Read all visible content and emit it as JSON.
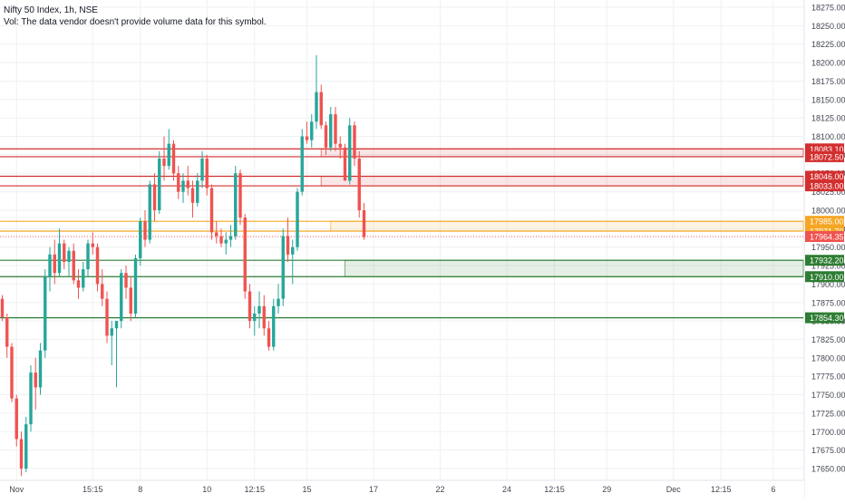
{
  "header": {
    "symbol_line": "Nifty 50 Index, 1h, NSE",
    "volume_note": "Vol: The data vendor doesn't provide volume data for this symbol."
  },
  "colors": {
    "up": "#26a69a",
    "down": "#ef5350",
    "grid": "#eef0f3",
    "axis_text": "#434651",
    "resistance": "#d32f2f",
    "pivot": "#f5a623",
    "support": "#2e7d32",
    "current_price": "#ef5350"
  },
  "chart_data": {
    "type": "candlestick",
    "ylim": [
      17630,
      18290
    ],
    "y_ticks": [
      17650,
      17675,
      17700,
      17725,
      17750,
      17775,
      17800,
      17825,
      17850,
      17875,
      17900,
      17925,
      17950,
      17975,
      18000,
      18025,
      18050,
      18075,
      18100,
      18125,
      18150,
      18175,
      18200,
      18225,
      18250,
      18275
    ],
    "x_labels": [
      {
        "label": "Nov",
        "bar": 3
      },
      {
        "label": "15:15",
        "bar": 19
      },
      {
        "label": "8",
        "bar": 29
      },
      {
        "label": "10",
        "bar": 43
      },
      {
        "label": "12:15",
        "bar": 53
      },
      {
        "label": "15",
        "bar": 64
      },
      {
        "label": "17",
        "bar": 78
      },
      {
        "label": "22",
        "bar": 92
      },
      {
        "label": "24",
        "bar": 106
      },
      {
        "label": "12:15",
        "bar": 116
      },
      {
        "label": "29",
        "bar": 127
      },
      {
        "label": "Dec",
        "bar": 141
      },
      {
        "label": "12:15",
        "bar": 151
      },
      {
        "label": "6",
        "bar": 162
      }
    ],
    "candles": [
      [
        17880,
        17885,
        17850,
        17855
      ],
      [
        17855,
        17860,
        17800,
        17815
      ],
      [
        17815,
        17820,
        17740,
        17745
      ],
      [
        17745,
        17750,
        17680,
        17690
      ],
      [
        17690,
        17700,
        17640,
        17650
      ],
      [
        17650,
        17720,
        17645,
        17710
      ],
      [
        17710,
        17790,
        17700,
        17780
      ],
      [
        17780,
        17800,
        17730,
        17760
      ],
      [
        17760,
        17820,
        17750,
        17810
      ],
      [
        17810,
        17920,
        17800,
        17910
      ],
      [
        17910,
        17950,
        17890,
        17940
      ],
      [
        17940,
        17960,
        17900,
        17915
      ],
      [
        17915,
        17975,
        17910,
        17955
      ],
      [
        17955,
        17960,
        17920,
        17930
      ],
      [
        17930,
        17950,
        17910,
        17945
      ],
      [
        17945,
        17955,
        17900,
        17905
      ],
      [
        17905,
        17920,
        17880,
        17895
      ],
      [
        17895,
        17930,
        17890,
        17920
      ],
      [
        17920,
        17960,
        17910,
        17955
      ],
      [
        17955,
        17970,
        17940,
        17950
      ],
      [
        17950,
        17955,
        17890,
        17900
      ],
      [
        17900,
        17920,
        17870,
        17880
      ],
      [
        17880,
        17890,
        17820,
        17830
      ],
      [
        17830,
        17850,
        17790,
        17840
      ],
      [
        17840,
        17850,
        17760,
        17850
      ],
      [
        17850,
        17920,
        17840,
        17915
      ],
      [
        17915,
        17925,
        17880,
        17895
      ],
      [
        17895,
        17910,
        17850,
        17860
      ],
      [
        17860,
        17940,
        17855,
        17935
      ],
      [
        17935,
        17990,
        17925,
        17985
      ],
      [
        17985,
        18000,
        17950,
        17960
      ],
      [
        17960,
        18040,
        17955,
        18035
      ],
      [
        18035,
        18050,
        17985,
        18000
      ],
      [
        18000,
        18080,
        17995,
        18070
      ],
      [
        18070,
        18100,
        18040,
        18060
      ],
      [
        18060,
        18110,
        18055,
        18090
      ],
      [
        18090,
        18095,
        18040,
        18050
      ],
      [
        18050,
        18060,
        18015,
        18025
      ],
      [
        18025,
        18050,
        18010,
        18040
      ],
      [
        18040,
        18060,
        18020,
        18030
      ],
      [
        18030,
        18040,
        17990,
        18010
      ],
      [
        18010,
        18050,
        18005,
        18040
      ],
      [
        18040,
        18080,
        18030,
        18070
      ],
      [
        18070,
        18075,
        18020,
        18030
      ],
      [
        18030,
        18035,
        17960,
        17970
      ],
      [
        17970,
        17985,
        17955,
        17965
      ],
      [
        17965,
        17975,
        17950,
        17955
      ],
      [
        17955,
        17970,
        17940,
        17960
      ],
      [
        17960,
        17980,
        17950,
        17965
      ],
      [
        17965,
        18060,
        17960,
        18050
      ],
      [
        18050,
        18055,
        17980,
        17990
      ],
      [
        17990,
        17995,
        17880,
        17890
      ],
      [
        17890,
        17900,
        17840,
        17850
      ],
      [
        17850,
        17870,
        17830,
        17860
      ],
      [
        17860,
        17890,
        17840,
        17870
      ],
      [
        17870,
        17885,
        17830,
        17840
      ],
      [
        17840,
        17850,
        17810,
        17815
      ],
      [
        17815,
        17880,
        17810,
        17870
      ],
      [
        17870,
        17900,
        17860,
        17880
      ],
      [
        17880,
        17975,
        17870,
        17965
      ],
      [
        17965,
        17990,
        17930,
        17940
      ],
      [
        17940,
        17960,
        17900,
        17950
      ],
      [
        17950,
        18030,
        17945,
        18025
      ],
      [
        18025,
        18110,
        18020,
        18100
      ],
      [
        18100,
        18120,
        18090,
        18095
      ],
      [
        18095,
        18130,
        18085,
        18120
      ],
      [
        18120,
        18210,
        18110,
        18160
      ],
      [
        18160,
        18170,
        18110,
        18115
      ],
      [
        18115,
        18120,
        18075,
        18085
      ],
      [
        18085,
        18140,
        18080,
        18130
      ],
      [
        18130,
        18140,
        18080,
        18090
      ],
      [
        18090,
        18100,
        18070,
        18085
      ],
      [
        18085,
        18090,
        18040,
        18040
      ],
      [
        18040,
        18125,
        18035,
        18115
      ],
      [
        18115,
        18120,
        18060,
        18070
      ],
      [
        18070,
        18080,
        17990,
        18000
      ],
      [
        18000,
        18010,
        17960,
        17964
      ]
    ]
  },
  "levels": [
    {
      "name": "resistance-1",
      "value": 18083.1,
      "label": "18083.10",
      "kind": "resistance"
    },
    {
      "name": "resistance-2",
      "value": 18072.5,
      "label": "18072.50",
      "kind": "resistance"
    },
    {
      "name": "resistance-3",
      "value": 18046.0,
      "label": "18046.00",
      "kind": "resistance"
    },
    {
      "name": "resistance-4",
      "value": 18033.0,
      "label": "18033.00",
      "kind": "resistance"
    },
    {
      "name": "pivot-1",
      "value": 17985.0,
      "label": "17985.00",
      "kind": "pivot"
    },
    {
      "name": "pivot-2",
      "value": 17971.7,
      "label": "17971.70",
      "kind": "pivot"
    },
    {
      "name": "current-price",
      "value": 17964.35,
      "label": "17964.35",
      "kind": "current_price"
    },
    {
      "name": "support-1",
      "value": 17932.2,
      "label": "17932.20",
      "kind": "support"
    },
    {
      "name": "support-2",
      "value": 17910.0,
      "label": "17910.00",
      "kind": "support"
    },
    {
      "name": "support-3",
      "value": 17854.3,
      "label": "17854.30",
      "kind": "support"
    }
  ],
  "zones": [
    {
      "name": "resistance-zone-upper",
      "top": 18083.1,
      "bottom": 18072.5,
      "from_bar": 67,
      "kind": "resistance"
    },
    {
      "name": "resistance-zone-lower",
      "top": 18046.0,
      "bottom": 18033.0,
      "from_bar": 67,
      "kind": "resistance"
    },
    {
      "name": "pivot-zone",
      "top": 17985.0,
      "bottom": 17971.7,
      "from_bar": 69,
      "kind": "pivot"
    },
    {
      "name": "support-zone",
      "top": 17932.2,
      "bottom": 17910.0,
      "from_bar": 72,
      "kind": "support"
    }
  ]
}
